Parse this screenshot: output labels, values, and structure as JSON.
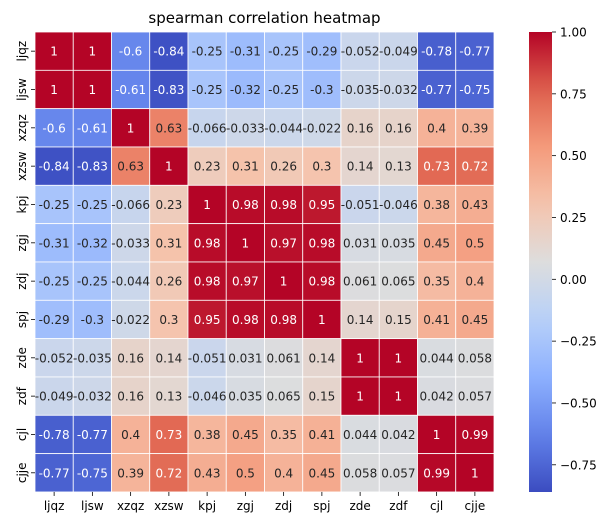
{
  "chart_data": {
    "type": "heatmap",
    "title": "spearman correlation heatmap",
    "xlabel": "",
    "ylabel": "",
    "x_categories": [
      "ljqz",
      "ljsw",
      "xzqz",
      "xzsw",
      "kpj",
      "zgj",
      "zdj",
      "spj",
      "zde",
      "zdf",
      "cjl",
      "cjje"
    ],
    "y_categories": [
      "ljqz",
      "ljsw",
      "xzqz",
      "xzsw",
      "kpj",
      "zgj",
      "zdj",
      "spj",
      "zde",
      "zdf",
      "cjl",
      "cjje"
    ],
    "values": [
      [
        1,
        1,
        -0.6,
        -0.84,
        -0.25,
        -0.31,
        -0.25,
        -0.29,
        -0.052,
        -0.049,
        -0.78,
        -0.77
      ],
      [
        1,
        1,
        -0.61,
        -0.83,
        -0.25,
        -0.32,
        -0.25,
        -0.3,
        -0.035,
        -0.032,
        -0.77,
        -0.75
      ],
      [
        -0.6,
        -0.61,
        1,
        0.63,
        -0.066,
        -0.033,
        -0.044,
        -0.022,
        0.16,
        0.16,
        0.4,
        0.39
      ],
      [
        -0.84,
        -0.83,
        0.63,
        1,
        0.23,
        0.31,
        0.26,
        0.3,
        0.14,
        0.13,
        0.73,
        0.72
      ],
      [
        -0.25,
        -0.25,
        -0.066,
        0.23,
        1,
        0.98,
        0.98,
        0.95,
        -0.051,
        -0.046,
        0.38,
        0.43
      ],
      [
        -0.31,
        -0.32,
        -0.033,
        0.31,
        0.98,
        1,
        0.97,
        0.98,
        0.031,
        0.035,
        0.45,
        0.5
      ],
      [
        -0.25,
        -0.25,
        -0.044,
        0.26,
        0.98,
        0.97,
        1,
        0.98,
        0.061,
        0.065,
        0.35,
        0.4
      ],
      [
        -0.29,
        -0.3,
        -0.022,
        0.3,
        0.95,
        0.98,
        0.98,
        1,
        0.14,
        0.15,
        0.41,
        0.45
      ],
      [
        -0.052,
        -0.035,
        0.16,
        0.14,
        -0.051,
        0.031,
        0.061,
        0.14,
        1,
        1,
        0.044,
        0.058
      ],
      [
        -0.049,
        -0.032,
        0.16,
        0.13,
        -0.046,
        0.035,
        0.065,
        0.15,
        1,
        1,
        0.042,
        0.057
      ],
      [
        -0.78,
        -0.77,
        0.4,
        0.73,
        0.38,
        0.45,
        0.35,
        0.41,
        0.044,
        0.042,
        1,
        0.99
      ],
      [
        -0.77,
        -0.75,
        0.39,
        0.72,
        0.43,
        0.5,
        0.4,
        0.45,
        0.058,
        0.057,
        0.99,
        1
      ]
    ],
    "colormap": "coolwarm",
    "color_range": [
      -0.86,
      1.0
    ],
    "colorbar_ticks": [
      1.0,
      0.75,
      0.5,
      0.25,
      0.0,
      -0.25,
      -0.5,
      -0.75
    ],
    "colorbar_tick_labels": [
      "1.00",
      "0.75",
      "0.50",
      "0.25",
      "0.00",
      "−0.25",
      "−0.50",
      "−0.75"
    ],
    "annotated": true,
    "grid": false
  }
}
